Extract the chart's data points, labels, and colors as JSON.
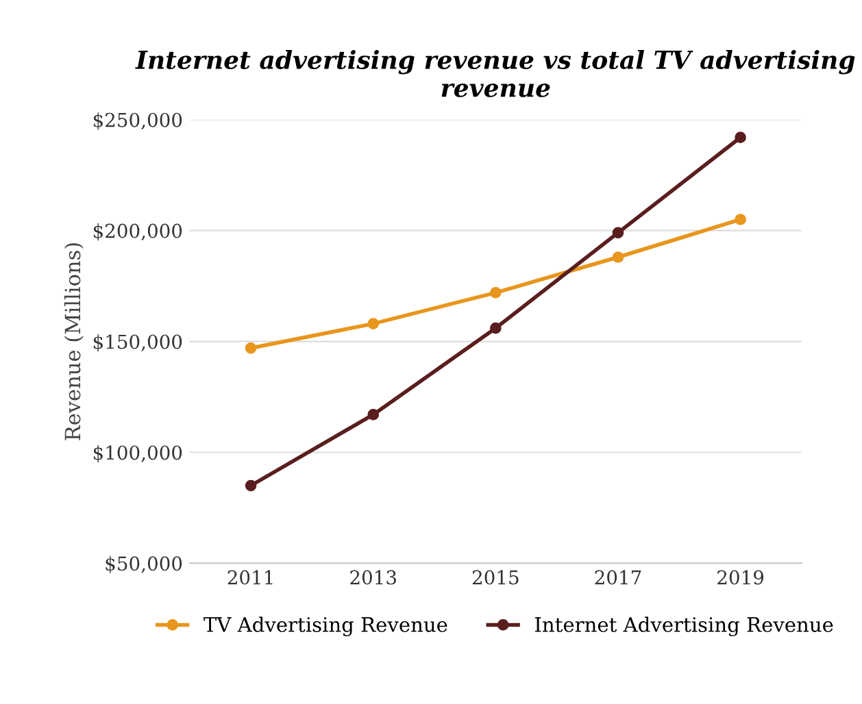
{
  "chart_data": {
    "type": "line",
    "title": "Internet advertising revenue vs total TV advertising revenue",
    "ylabel": "Revenue (Millions)",
    "x": [
      2011,
      2013,
      2015,
      2017,
      2019
    ],
    "xlim": [
      2010,
      2020
    ],
    "xticks": [
      2011,
      2013,
      2015,
      2017,
      2019
    ],
    "series": [
      {
        "name": "TV Advertising Revenue",
        "color": "#e8961e",
        "values": [
          147000,
          158000,
          172000,
          188000,
          205000
        ]
      },
      {
        "name": "Internet Advertising Revenue",
        "color": "#5a1e1e",
        "values": [
          85000,
          117000,
          156000,
          199000,
          242000
        ]
      }
    ],
    "ylim": [
      50000,
      250000
    ],
    "yticks": [
      {
        "value": 50000,
        "label": "$50,000"
      },
      {
        "value": 100000,
        "label": "$100,000"
      },
      {
        "value": 150000,
        "label": "$150,000"
      },
      {
        "value": 200000,
        "label": "$200,000"
      },
      {
        "value": 250000,
        "label": "$250,000"
      }
    ],
    "grid": "y",
    "legend": "bottom",
    "marker": "circle",
    "line_style": "solid"
  }
}
